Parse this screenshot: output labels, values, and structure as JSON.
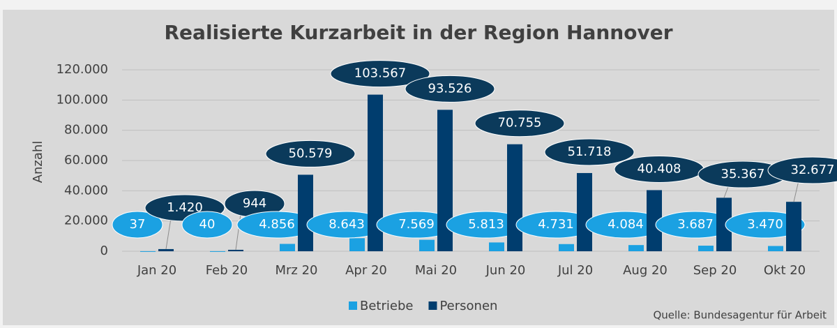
{
  "chart_data": {
    "type": "bar",
    "title": "Realisierte Kurzarbeit in der Region Hannover",
    "y_label": "Anzahl",
    "source": "Quelle: Bundesagentur für Arbeit",
    "categories": [
      "Jan 20",
      "Feb 20",
      "Mrz 20",
      "Apr 20",
      "Mai 20",
      "Jun 20",
      "Jul 20",
      "Aug 20",
      "Sep 20",
      "Okt 20"
    ],
    "series": [
      {
        "name": "Betriebe",
        "color": "#1ba1e2",
        "values": [
          37,
          40,
          4856,
          8643,
          7569,
          5813,
          4731,
          4084,
          3687,
          3470
        ],
        "value_labels": [
          "37",
          "40",
          "4.856",
          "8.643",
          "7.569",
          "5.813",
          "4.731",
          "4.084",
          "3.687",
          "3.470"
        ]
      },
      {
        "name": "Personen",
        "color": "#003d6e",
        "values": [
          1420,
          944,
          50579,
          103567,
          93526,
          70755,
          51718,
          40408,
          35367,
          32677
        ],
        "value_labels": [
          "1.420",
          "944",
          "50.579",
          "103.567",
          "93.526",
          "70.755",
          "51.718",
          "40.408",
          "35.367",
          "32.677"
        ]
      }
    ],
    "ylim": [
      0,
      120000
    ],
    "yticks": [
      0,
      {
        "value": 20000,
        "label": "20.000"
      },
      {
        "value": 40000,
        "label": "40.000"
      },
      {
        "value": 60000,
        "label": "60.000"
      },
      {
        "value": 80000,
        "label": "80.000"
      },
      {
        "value": 100000,
        "label": "100.000"
      },
      {
        "value": 120000,
        "label": "120.000"
      }
    ],
    "grid": true,
    "legend": "bottom"
  }
}
